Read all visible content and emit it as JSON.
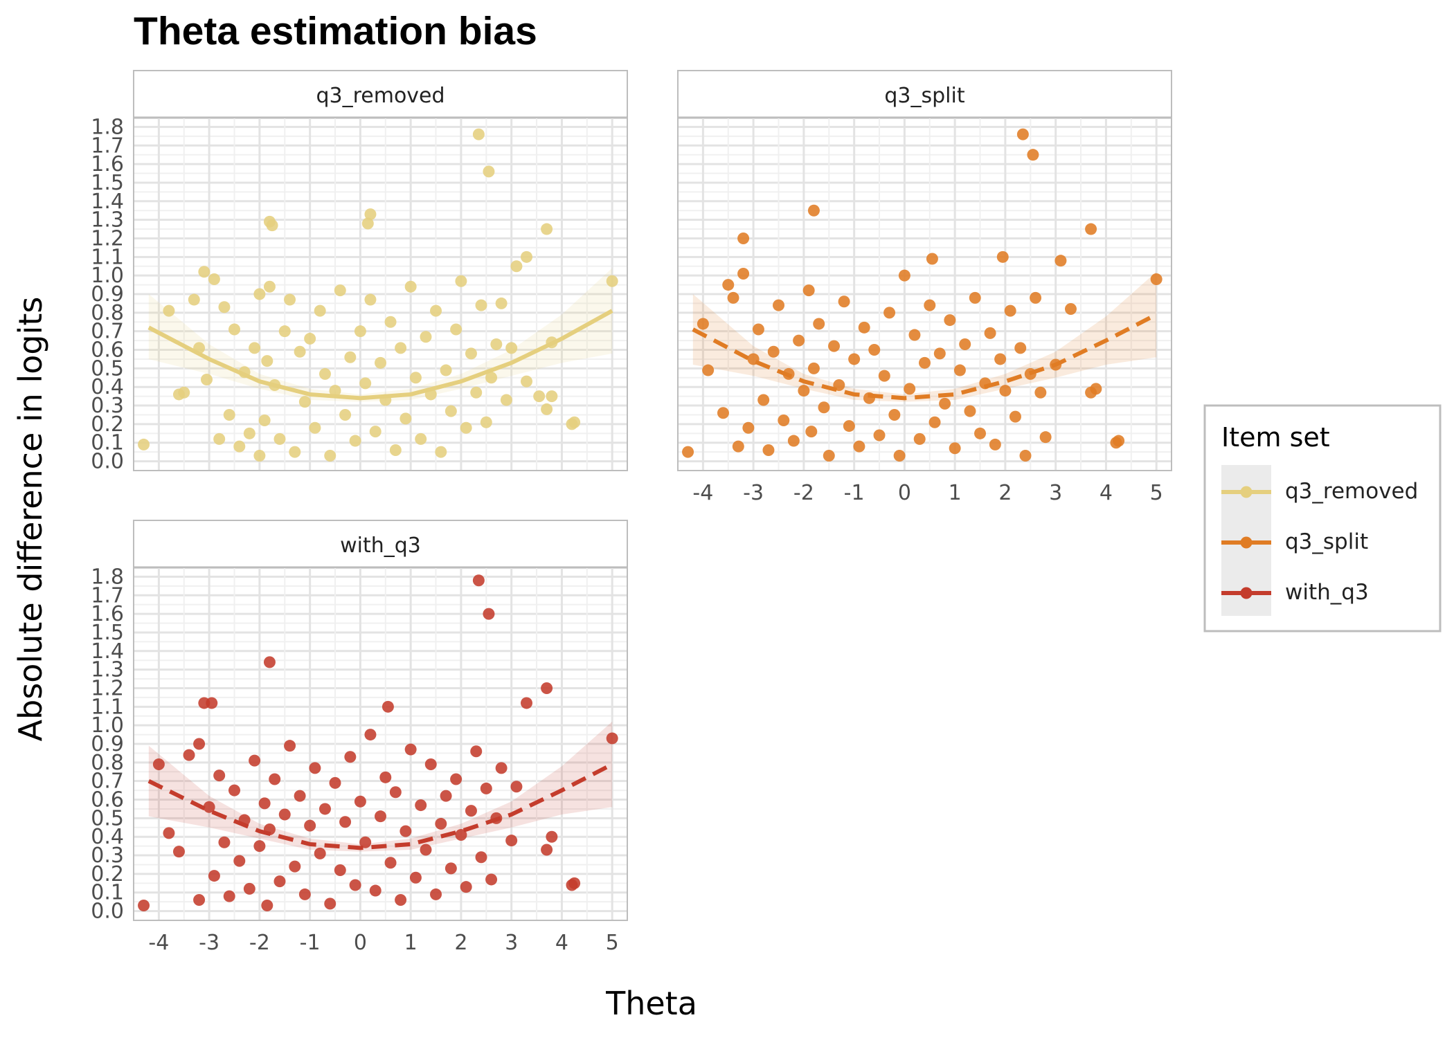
{
  "chart_data": {
    "type": "scatter",
    "title": "Theta estimation bias",
    "xlabel": "Theta",
    "ylabel": "Absolute difference in logits",
    "xlim": [
      -4.5,
      5.3
    ],
    "ylim": [
      -0.05,
      1.85
    ],
    "x_ticks": [
      "-4",
      "-3",
      "-2",
      "-1",
      "0",
      "1",
      "2",
      "3",
      "4",
      "5"
    ],
    "y_ticks": [
      "0.0",
      "0.1",
      "0.2",
      "0.3",
      "0.4",
      "0.5",
      "0.6",
      "0.7",
      "0.8",
      "0.9",
      "1.0",
      "1.1",
      "1.2",
      "1.3",
      "1.4",
      "1.5",
      "1.6",
      "1.7",
      "1.8"
    ],
    "grid": true,
    "legend": {
      "title": "Item set",
      "position": "right",
      "entries": [
        "q3_removed",
        "q3_split",
        "with_q3"
      ]
    },
    "series": [
      {
        "name": "q3_removed",
        "color": "#e5cf7e",
        "line_style": "solid",
        "trend": {
          "x": [
            -4.2,
            -3.0,
            -2.0,
            -1.0,
            0.0,
            1.0,
            2.0,
            3.0,
            4.0,
            5.0
          ],
          "y": [
            0.72,
            0.55,
            0.43,
            0.36,
            0.34,
            0.36,
            0.43,
            0.53,
            0.66,
            0.81
          ]
        },
        "ribbon": {
          "x": [
            -4.2,
            -3.0,
            -2.0,
            -1.0,
            0.0,
            1.0,
            2.0,
            3.0,
            4.0,
            5.0
          ],
          "lower": [
            0.55,
            0.47,
            0.39,
            0.33,
            0.32,
            0.33,
            0.39,
            0.46,
            0.53,
            0.58
          ],
          "upper": [
            0.9,
            0.63,
            0.47,
            0.39,
            0.36,
            0.39,
            0.47,
            0.6,
            0.79,
            1.04
          ]
        },
        "points": {
          "x": [
            -4.3,
            -3.8,
            -3.6,
            -3.5,
            -3.3,
            -3.2,
            -3.1,
            -3.05,
            -2.9,
            -2.8,
            -2.7,
            -2.6,
            -2.5,
            -2.4,
            -2.3,
            -2.2,
            -2.1,
            -2.0,
            -2.0,
            -1.9,
            -1.85,
            -1.8,
            -1.7,
            -1.6,
            -1.5,
            -1.4,
            -1.3,
            -1.2,
            -1.1,
            -1.0,
            -0.9,
            -0.8,
            -0.7,
            -0.6,
            -0.5,
            -0.4,
            -0.3,
            -0.2,
            -0.1,
            0.0,
            0.1,
            0.2,
            0.3,
            0.4,
            0.5,
            0.6,
            0.7,
            0.8,
            0.9,
            1.0,
            1.1,
            1.2,
            1.3,
            1.4,
            1.5,
            1.6,
            1.7,
            1.8,
            1.9,
            2.0,
            2.1,
            2.2,
            2.3,
            2.4,
            2.5,
            2.6,
            2.7,
            2.8,
            2.9,
            3.0,
            3.1,
            3.3,
            3.7,
            3.8,
            3.7,
            4.2,
            4.25,
            5.0,
            -1.8,
            -1.75,
            0.2,
            0.15,
            2.35,
            2.55,
            3.55,
            3.3,
            3.8
          ],
          "y": [
            0.09,
            0.81,
            0.36,
            0.37,
            0.87,
            0.61,
            1.02,
            0.44,
            0.98,
            0.12,
            0.83,
            0.25,
            0.71,
            0.08,
            0.48,
            0.15,
            0.61,
            0.9,
            0.03,
            0.22,
            0.54,
            0.94,
            0.41,
            0.12,
            0.7,
            0.87,
            0.05,
            0.59,
            0.32,
            0.66,
            0.18,
            0.81,
            0.47,
            0.03,
            0.38,
            0.92,
            0.25,
            0.56,
            0.11,
            0.7,
            0.42,
            0.87,
            0.16,
            0.53,
            0.33,
            0.75,
            0.06,
            0.61,
            0.23,
            0.94,
            0.45,
            0.12,
            0.67,
            0.36,
            0.81,
            0.05,
            0.49,
            0.27,
            0.71,
            0.97,
            0.18,
            0.58,
            0.37,
            0.84,
            0.21,
            0.45,
            0.63,
            0.85,
            0.33,
            0.61,
            1.05,
            1.1,
            1.25,
            0.35,
            0.28,
            0.2,
            0.21,
            0.97,
            1.29,
            1.27,
            1.33,
            1.28,
            1.76,
            1.56,
            0.35,
            0.43,
            0.64
          ]
        }
      },
      {
        "name": "q3_split",
        "color": "#e07c24",
        "line_style": "dashed",
        "trend": {
          "x": [
            -4.2,
            -3.0,
            -2.0,
            -1.0,
            0.0,
            1.0,
            2.0,
            3.0,
            4.0,
            5.0
          ],
          "y": [
            0.71,
            0.54,
            0.43,
            0.36,
            0.34,
            0.36,
            0.43,
            0.52,
            0.65,
            0.79
          ]
        },
        "ribbon": {
          "x": [
            -4.2,
            -3.0,
            -2.0,
            -1.0,
            0.0,
            1.0,
            2.0,
            3.0,
            4.0,
            5.0
          ],
          "lower": [
            0.52,
            0.46,
            0.39,
            0.33,
            0.32,
            0.33,
            0.39,
            0.45,
            0.52,
            0.56
          ],
          "upper": [
            0.9,
            0.62,
            0.47,
            0.39,
            0.36,
            0.39,
            0.47,
            0.59,
            0.78,
            1.02
          ]
        },
        "points": {
          "x": [
            -4.3,
            -4.0,
            -3.9,
            -3.6,
            -3.5,
            -3.3,
            -3.2,
            -3.1,
            -3.0,
            -2.9,
            -2.8,
            -2.7,
            -2.6,
            -2.5,
            -2.4,
            -2.3,
            -2.2,
            -2.1,
            -2.0,
            -1.9,
            -1.85,
            -1.8,
            -1.7,
            -1.6,
            -1.5,
            -1.4,
            -1.3,
            -1.2,
            -1.1,
            -1.0,
            -0.9,
            -0.8,
            -0.7,
            -0.6,
            -0.5,
            -0.4,
            -0.3,
            -0.2,
            -0.1,
            0.0,
            0.1,
            0.2,
            0.3,
            0.4,
            0.5,
            0.6,
            0.7,
            0.8,
            0.9,
            1.0,
            1.1,
            1.2,
            1.3,
            1.4,
            1.5,
            1.6,
            1.7,
            1.8,
            1.9,
            2.0,
            2.1,
            2.2,
            2.3,
            2.4,
            2.5,
            2.6,
            2.7,
            2.8,
            3.0,
            3.1,
            3.3,
            3.7,
            3.8,
            3.7,
            4.2,
            4.25,
            5.0,
            -1.8,
            -3.2,
            -3.4,
            0.55,
            1.95,
            2.35,
            2.55
          ],
          "y": [
            0.05,
            0.74,
            0.49,
            0.26,
            0.95,
            0.08,
            1.2,
            0.18,
            0.55,
            0.71,
            0.33,
            0.06,
            0.59,
            0.84,
            0.22,
            0.47,
            0.11,
            0.65,
            0.38,
            0.92,
            0.16,
            0.5,
            0.74,
            0.29,
            0.03,
            0.62,
            0.41,
            0.86,
            0.19,
            0.55,
            0.08,
            0.72,
            0.34,
            0.6,
            0.14,
            0.46,
            0.8,
            0.25,
            0.03,
            1.0,
            0.39,
            0.68,
            0.12,
            0.53,
            0.84,
            0.21,
            0.58,
            0.31,
            0.76,
            0.07,
            0.49,
            0.63,
            0.27,
            0.88,
            0.15,
            0.42,
            0.69,
            0.09,
            0.55,
            0.38,
            0.81,
            0.24,
            0.61,
            0.03,
            0.47,
            0.88,
            0.37,
            0.13,
            0.52,
            1.08,
            0.82,
            1.25,
            0.39,
            0.37,
            0.1,
            0.11,
            0.98,
            1.35,
            1.01,
            0.88,
            1.09,
            1.1,
            1.76,
            1.65
          ]
        }
      },
      {
        "name": "with_q3",
        "color": "#c43c2c",
        "line_style": "dashed",
        "trend": {
          "x": [
            -4.2,
            -3.0,
            -2.0,
            -1.0,
            0.0,
            1.0,
            2.0,
            3.0,
            4.0,
            5.0
          ],
          "y": [
            0.7,
            0.54,
            0.43,
            0.36,
            0.34,
            0.36,
            0.43,
            0.52,
            0.65,
            0.79
          ]
        },
        "ribbon": {
          "x": [
            -4.2,
            -3.0,
            -2.0,
            -1.0,
            0.0,
            1.0,
            2.0,
            3.0,
            4.0,
            5.0
          ],
          "lower": [
            0.51,
            0.45,
            0.39,
            0.33,
            0.32,
            0.33,
            0.39,
            0.45,
            0.52,
            0.56
          ],
          "upper": [
            0.89,
            0.62,
            0.47,
            0.39,
            0.36,
            0.39,
            0.47,
            0.59,
            0.78,
            1.02
          ]
        },
        "points": {
          "x": [
            -4.3,
            -4.0,
            -3.8,
            -3.6,
            -3.4,
            -3.2,
            -3.1,
            -3.0,
            -2.9,
            -2.8,
            -2.7,
            -2.6,
            -2.5,
            -2.4,
            -2.3,
            -2.2,
            -2.1,
            -2.0,
            -1.9,
            -1.85,
            -1.8,
            -1.7,
            -1.6,
            -1.5,
            -1.4,
            -1.3,
            -1.2,
            -1.1,
            -1.0,
            -0.9,
            -0.8,
            -0.7,
            -0.6,
            -0.5,
            -0.4,
            -0.3,
            -0.2,
            -0.1,
            0.0,
            0.1,
            0.2,
            0.3,
            0.4,
            0.5,
            0.6,
            0.7,
            0.8,
            0.9,
            1.0,
            1.1,
            1.2,
            1.3,
            1.4,
            1.5,
            1.6,
            1.7,
            1.8,
            1.9,
            2.0,
            2.1,
            2.2,
            2.3,
            2.4,
            2.5,
            2.6,
            2.7,
            2.8,
            3.0,
            3.1,
            3.3,
            3.7,
            3.8,
            3.7,
            4.2,
            4.25,
            5.0,
            -1.8,
            -3.2,
            -2.95,
            0.55,
            2.35,
            2.55
          ],
          "y": [
            0.03,
            0.79,
            0.42,
            0.32,
            0.84,
            0.06,
            1.12,
            0.56,
            0.19,
            0.73,
            0.37,
            0.08,
            0.65,
            0.27,
            0.49,
            0.12,
            0.81,
            0.35,
            0.58,
            0.03,
            0.44,
            0.71,
            0.16,
            0.52,
            0.89,
            0.24,
            0.62,
            0.09,
            0.46,
            0.77,
            0.31,
            0.55,
            0.04,
            0.69,
            0.22,
            0.48,
            0.83,
            0.14,
            0.59,
            0.37,
            0.95,
            0.11,
            0.51,
            0.72,
            0.26,
            0.64,
            0.06,
            0.43,
            0.87,
            0.18,
            0.57,
            0.33,
            0.79,
            0.09,
            0.47,
            0.62,
            0.23,
            0.71,
            0.41,
            0.13,
            0.54,
            0.86,
            0.29,
            0.66,
            0.17,
            0.5,
            0.77,
            0.38,
            0.67,
            1.12,
            1.2,
            0.4,
            0.33,
            0.14,
            0.15,
            0.93,
            1.34,
            0.9,
            1.12,
            1.1,
            1.78,
            1.6
          ]
        }
      }
    ]
  }
}
